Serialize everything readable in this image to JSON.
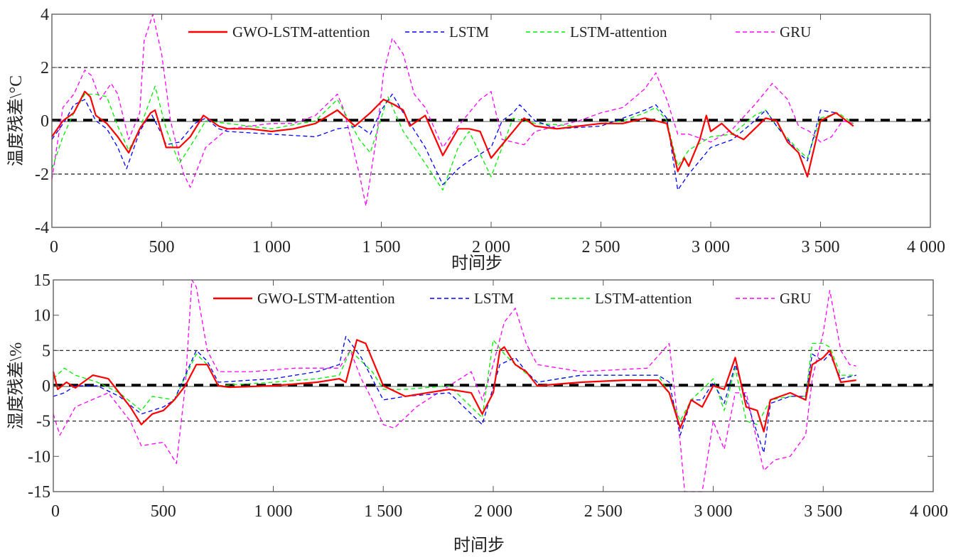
{
  "chart_data": [
    {
      "type": "line",
      "xlabel": "时间步",
      "ylabel": "温度残差\\°C",
      "xlim": [
        0,
        4000
      ],
      "ylim": [
        -4,
        4
      ],
      "xticks": [
        0,
        500,
        1000,
        1500,
        2000,
        2500,
        3000,
        3500,
        4000
      ],
      "xtick_labels": [
        "0",
        "500",
        "1 000",
        "1 500",
        "2 000",
        "2 500",
        "3 000",
        "3 500",
        "4 000"
      ],
      "yticks": [
        -4,
        -2,
        0,
        2,
        4
      ],
      "ytick_labels": [
        "-4",
        "-2",
        "0",
        "2",
        "4"
      ],
      "reference_lines": {
        "thresholds": [
          2,
          -2
        ],
        "zero": 0
      },
      "legend_position": "top",
      "series": [
        {
          "name": "GWO-LSTM-attention",
          "color": "#ff0000",
          "style": "solid",
          "x": [
            0,
            50,
            100,
            150,
            175,
            200,
            250,
            300,
            350,
            400,
            450,
            470,
            520,
            580,
            630,
            690,
            760,
            800,
            900,
            1000,
            1100,
            1200,
            1300,
            1380,
            1450,
            1510,
            1560,
            1600,
            1630,
            1700,
            1780,
            1850,
            1900,
            1950,
            2000,
            2060,
            2150,
            2200,
            2300,
            2400,
            2500,
            2600,
            2700,
            2800,
            2850,
            2880,
            2900,
            2950,
            2980,
            3000,
            3050,
            3100,
            3150,
            3200,
            3250,
            3300,
            3350,
            3400,
            3440,
            3500,
            3570,
            3650
          ],
          "y": [
            -0.6,
            0.0,
            0.3,
            1.1,
            0.9,
            0.2,
            -0.1,
            -0.6,
            -1.2,
            -0.3,
            0.3,
            0.4,
            -1.0,
            -1.0,
            -0.6,
            0.2,
            -0.2,
            -0.3,
            -0.3,
            -0.4,
            -0.3,
            -0.1,
            0.4,
            -0.2,
            0.3,
            0.8,
            0.6,
            0.4,
            -0.2,
            0.2,
            -1.3,
            -0.3,
            -0.3,
            -0.4,
            -1.4,
            -0.8,
            0.1,
            -0.2,
            -0.3,
            -0.2,
            -0.1,
            -0.1,
            0.1,
            -0.1,
            -1.9,
            -1.4,
            -1.7,
            -0.7,
            0.2,
            -0.4,
            -0.1,
            -0.5,
            -0.7,
            -0.3,
            0.1,
            0.0,
            -0.8,
            -1.2,
            -2.1,
            0.0,
            0.3,
            -0.2
          ]
        },
        {
          "name": "LSTM",
          "color": "#0000ff",
          "style": "dashed",
          "x": [
            0,
            60,
            100,
            150,
            200,
            250,
            300,
            340,
            400,
            450,
            500,
            520,
            580,
            650,
            700,
            760,
            800,
            1000,
            1200,
            1300,
            1400,
            1450,
            1500,
            1550,
            1600,
            1700,
            1780,
            1850,
            1900,
            2000,
            2050,
            2100,
            2130,
            2200,
            2300,
            2500,
            2700,
            2750,
            2800,
            2850,
            2900,
            3000,
            3100,
            3200,
            3250,
            3300,
            3400,
            3440,
            3500,
            3570,
            3650
          ],
          "y": [
            -0.7,
            0.0,
            0.6,
            0.8,
            0.0,
            -0.3,
            -1.0,
            -1.8,
            -0.4,
            0.3,
            -0.5,
            -0.9,
            -0.8,
            -0.1,
            0.1,
            -0.3,
            -0.4,
            -0.5,
            -0.6,
            -0.3,
            -0.2,
            -0.5,
            0.4,
            1.0,
            0.3,
            -1.0,
            -2.4,
            -1.8,
            -1.5,
            -1.0,
            0.0,
            0.3,
            0.6,
            0.0,
            -0.3,
            -0.2,
            0.4,
            0.6,
            0.1,
            -2.6,
            -2.0,
            -1.0,
            -0.7,
            0.0,
            0.4,
            -0.2,
            -1.2,
            -1.5,
            0.4,
            0.3,
            -0.2
          ]
        },
        {
          "name": "LSTM-attention",
          "color": "#00ee00",
          "style": "dashed",
          "x": [
            0,
            50,
            100,
            150,
            200,
            250,
            300,
            350,
            400,
            470,
            520,
            580,
            650,
            700,
            800,
            1000,
            1200,
            1300,
            1400,
            1450,
            1530,
            1600,
            1700,
            1780,
            1850,
            1900,
            2000,
            2100,
            2200,
            2400,
            2600,
            2700,
            2750,
            2800,
            2850,
            2900,
            3000,
            3100,
            3200,
            3250,
            3300,
            3400,
            3440,
            3500,
            3580,
            3650
          ],
          "y": [
            -1.8,
            -0.6,
            0.3,
            1.0,
            1.0,
            0.9,
            -0.2,
            -1.1,
            -0.3,
            1.3,
            -0.3,
            -1.6,
            -0.7,
            0.0,
            -0.1,
            -0.3,
            0.0,
            0.8,
            -0.7,
            -1.2,
            0.9,
            -0.4,
            -1.6,
            -2.6,
            -1.0,
            -0.4,
            -2.1,
            0.1,
            -0.1,
            -0.2,
            0.0,
            0.3,
            0.5,
            0.0,
            -1.7,
            -1.1,
            -0.6,
            -0.5,
            0.2,
            0.4,
            -0.2,
            -1.1,
            -1.4,
            0.1,
            0.3,
            -0.1
          ]
        },
        {
          "name": "GRU",
          "color": "#ff00ff",
          "style": "dashed",
          "x": [
            0,
            50,
            100,
            150,
            180,
            220,
            270,
            300,
            350,
            400,
            420,
            460,
            500,
            540,
            600,
            630,
            700,
            800,
            1000,
            1100,
            1200,
            1300,
            1330,
            1400,
            1430,
            1480,
            1510,
            1550,
            1600,
            1650,
            1700,
            1780,
            1850,
            1950,
            2000,
            2050,
            2150,
            2200,
            2300,
            2400,
            2500,
            2600,
            2700,
            2750,
            2800,
            2850,
            2900,
            3000,
            3100,
            3200,
            3250,
            3280,
            3350,
            3400,
            3450,
            3500,
            3550,
            3600,
            3650
          ],
          "y": [
            -2.2,
            0.5,
            1.0,
            1.9,
            1.7,
            0.8,
            1.4,
            1.0,
            -0.7,
            0.3,
            3.0,
            4.0,
            2.5,
            0.0,
            -2.0,
            -2.5,
            -1.0,
            -0.3,
            -0.1,
            -0.1,
            0.2,
            1.0,
            0.4,
            -2.0,
            -3.2,
            -0.5,
            1.8,
            3.1,
            2.5,
            1.0,
            0.5,
            -1.0,
            -0.2,
            0.8,
            1.1,
            -0.7,
            -0.9,
            -0.4,
            -0.2,
            0.0,
            0.3,
            0.5,
            1.2,
            1.8,
            0.8,
            -0.5,
            -0.5,
            -0.8,
            -0.3,
            0.6,
            1.1,
            1.4,
            0.8,
            -0.2,
            -0.4,
            -0.8,
            -0.6,
            0.0,
            -0.1
          ]
        }
      ]
    },
    {
      "type": "line",
      "xlabel": "时间步",
      "ylabel": "湿度残差\\%",
      "xlim": [
        0,
        4000
      ],
      "ylim": [
        -15,
        15
      ],
      "xticks": [
        0,
        500,
        1000,
        1500,
        2000,
        2500,
        3000,
        3500,
        4000
      ],
      "xtick_labels": [
        "0",
        "500",
        "1 000",
        "1 500",
        "2 000",
        "2 500",
        "3 000",
        "3 500",
        "4 000"
      ],
      "yticks": [
        -15,
        -10,
        -5,
        0,
        5,
        10,
        15
      ],
      "ytick_labels": [
        "-15",
        "-10",
        "-5",
        "0",
        "5",
        "10",
        "15"
      ],
      "reference_lines": {
        "thresholds": [
          5,
          -5
        ],
        "zero": 0
      },
      "legend_position": "top",
      "series": [
        {
          "name": "GWO-LSTM-attention",
          "color": "#ff0000",
          "style": "solid",
          "x": [
            0,
            20,
            60,
            100,
            180,
            250,
            350,
            400,
            450,
            500,
            550,
            600,
            650,
            700,
            750,
            800,
            1000,
            1200,
            1300,
            1330,
            1380,
            1420,
            1500,
            1600,
            1700,
            1800,
            1900,
            1950,
            2000,
            2030,
            2050,
            2100,
            2150,
            2200,
            2400,
            2600,
            2750,
            2800,
            2850,
            2900,
            2950,
            3000,
            3050,
            3100,
            3150,
            3200,
            3230,
            3260,
            3350,
            3420,
            3450,
            3500,
            3530,
            3580,
            3650
          ],
          "y": [
            2,
            -0.5,
            0.5,
            -0.3,
            1.5,
            1.0,
            -3.0,
            -5.5,
            -4.0,
            -3.5,
            -2.0,
            0.0,
            3.0,
            3.0,
            0.0,
            -0.2,
            0.0,
            0.5,
            1.0,
            0.5,
            6.5,
            6.0,
            0.0,
            -1.5,
            -1.0,
            -0.5,
            -1.0,
            -4.0,
            -1.0,
            5.0,
            5.5,
            3.0,
            2.0,
            0.0,
            0.5,
            0.8,
            0.8,
            -1.0,
            -6.0,
            -2.0,
            -3.0,
            0.0,
            -0.5,
            4.0,
            -3.0,
            -3.5,
            -6.5,
            -2.0,
            -1.0,
            -2.0,
            3.0,
            4.0,
            5.0,
            0.5,
            0.8
          ]
        },
        {
          "name": "LSTM",
          "color": "#0000ff",
          "style": "dashed",
          "x": [
            0,
            50,
            100,
            200,
            300,
            400,
            500,
            550,
            650,
            700,
            750,
            1000,
            1200,
            1300,
            1330,
            1400,
            1450,
            1500,
            1600,
            1800,
            1950,
            2030,
            2100,
            2150,
            2200,
            2400,
            2750,
            2800,
            2850,
            2900,
            2950,
            3000,
            3050,
            3100,
            3150,
            3230,
            3260,
            3350,
            3420,
            3450,
            3500,
            3530,
            3580,
            3650
          ],
          "y": [
            -1.5,
            -1.0,
            0.0,
            0.0,
            -1.5,
            -4.0,
            -3.0,
            -2.0,
            5.0,
            3.5,
            0.5,
            1.0,
            2.0,
            3.0,
            7.0,
            4.0,
            1.0,
            -2.0,
            -1.5,
            -1.0,
            -5.5,
            3.0,
            4.0,
            2.0,
            0.5,
            1.5,
            1.5,
            0.5,
            -7.0,
            -2.0,
            -2.0,
            0.5,
            -2.5,
            3.0,
            -2.0,
            -9.5,
            -2.5,
            -1.5,
            -1.5,
            4.5,
            3.5,
            4.5,
            1.0,
            1.5
          ]
        },
        {
          "name": "LSTM-attention",
          "color": "#00ee00",
          "style": "dashed",
          "x": [
            0,
            50,
            100,
            200,
            300,
            400,
            450,
            550,
            650,
            700,
            750,
            1000,
            1200,
            1300,
            1350,
            1400,
            1450,
            1500,
            1600,
            1800,
            1950,
            2000,
            2050,
            2100,
            2200,
            2400,
            2750,
            2800,
            2850,
            2900,
            3000,
            3050,
            3100,
            3150,
            3200,
            3260,
            3350,
            3420,
            3450,
            3500,
            3530,
            3580,
            3650
          ],
          "y": [
            1.0,
            2.5,
            1.5,
            0.5,
            -1.0,
            -3.5,
            -1.5,
            -2.0,
            4.5,
            3.0,
            0.0,
            0.5,
            1.0,
            1.5,
            5.0,
            3.5,
            2.0,
            -0.5,
            -0.5,
            0.0,
            -4.5,
            6.5,
            4.5,
            3.0,
            0.5,
            1.5,
            1.5,
            -1.0,
            -5.0,
            -2.0,
            1.0,
            -3.5,
            2.5,
            -5.0,
            -5.5,
            -2.0,
            -1.5,
            -1.5,
            6.0,
            6.0,
            5.5,
            1.5,
            1.5
          ]
        },
        {
          "name": "GRU",
          "color": "#ff00ff",
          "style": "dashed",
          "x": [
            0,
            30,
            100,
            250,
            350,
            400,
            500,
            560,
            600,
            630,
            650,
            700,
            750,
            900,
            1100,
            1300,
            1350,
            1400,
            1450,
            1500,
            1550,
            1650,
            1800,
            1900,
            1950,
            2000,
            2050,
            2100,
            2150,
            2200,
            2400,
            2700,
            2800,
            2850,
            2870,
            2950,
            3000,
            3050,
            3100,
            3150,
            3200,
            3230,
            3280,
            3350,
            3420,
            3450,
            3500,
            3530,
            3580,
            3620,
            3650
          ],
          "y": [
            -4,
            -7.0,
            -3.0,
            -1.0,
            -5.0,
            -8.5,
            -8.0,
            -11,
            0.0,
            15,
            14,
            5,
            2,
            2.0,
            2.5,
            2.5,
            5.0,
            1.0,
            -2.0,
            -5.5,
            -6.0,
            -3.0,
            0.0,
            2.0,
            -2.0,
            3.0,
            9.0,
            11.0,
            6.0,
            3.0,
            2.0,
            2.5,
            6.0,
            -8.0,
            -15,
            -15,
            -5.0,
            -9.0,
            -1.0,
            -1.0,
            -8.0,
            -12,
            -10.5,
            -10,
            -7.0,
            1.0,
            7.5,
            13.5,
            5.0,
            3.0,
            2.8
          ]
        }
      ]
    }
  ]
}
